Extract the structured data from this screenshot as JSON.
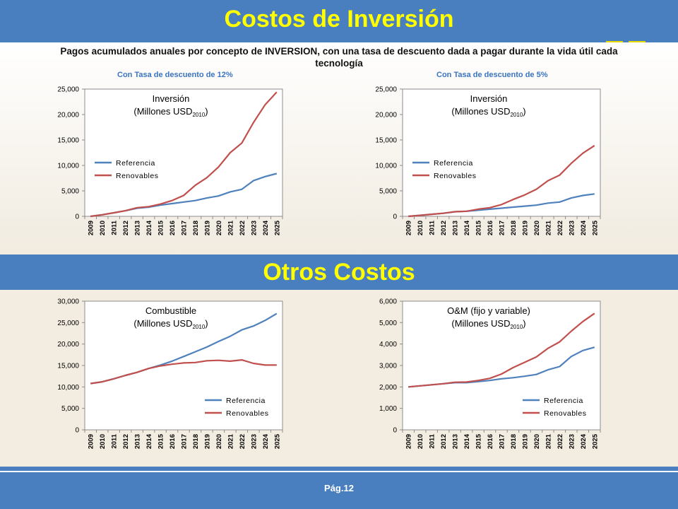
{
  "header": {
    "title": "Costos de Inversión"
  },
  "subtitle": "Pagos acumulados anuales por concepto de INVERSION, con una tasa de descuento dada a pagar durante la vida útil cada tecnología",
  "panel_labels": {
    "left": "Con Tasa de descuento de 12%",
    "right": "Con Tasa de descuento de 5%"
  },
  "section2": {
    "title": "Otros Costos"
  },
  "footer": {
    "page": "Pág.12"
  },
  "colors": {
    "banner": "#4a7fbf",
    "title": "#ffff00",
    "referencia": "#4f81bd",
    "renovables": "#c0504d"
  },
  "chart_data": [
    {
      "type": "line",
      "title_line1": "Inversión",
      "title_line2": "(Millones USD",
      "title_sub": "2010",
      "title_close": ")",
      "x": [
        "2009",
        "2010",
        "2011",
        "2012",
        "2013",
        "2014",
        "2015",
        "2016",
        "2017",
        "2018",
        "2019",
        "2020",
        "2021",
        "2022",
        "2023",
        "2024",
        "2025"
      ],
      "ylim": [
        0,
        25000
      ],
      "yticks": [
        0,
        5000,
        10000,
        15000,
        20000,
        25000
      ],
      "ytick_labels": [
        "0",
        "5,000",
        "10,000",
        "15,000",
        "20,000",
        "25,000"
      ],
      "legend": "left-middle",
      "series": [
        {
          "name": "Referencia",
          "values": [
            0,
            300,
            700,
            1100,
            1600,
            1800,
            2200,
            2500,
            2800,
            3100,
            3600,
            4000,
            4800,
            5300,
            7000,
            7800,
            8400
          ]
        },
        {
          "name": "Renovables",
          "values": [
            0,
            300,
            700,
            1100,
            1700,
            1900,
            2400,
            3100,
            4100,
            6100,
            7600,
            9700,
            12500,
            14400,
            18400,
            21900,
            24400
          ]
        }
      ]
    },
    {
      "type": "line",
      "title_line1": "Inversión",
      "title_line2": "(Millones USD",
      "title_sub": "2010",
      "title_close": ")",
      "x": [
        "2009",
        "2010",
        "2011",
        "2012",
        "2013",
        "2014",
        "2015",
        "2016",
        "2017",
        "2018",
        "2019",
        "2020",
        "2021",
        "2022",
        "2023",
        "2024",
        "2025"
      ],
      "ylim": [
        0,
        25000
      ],
      "yticks": [
        0,
        5000,
        10000,
        15000,
        20000,
        25000
      ],
      "ytick_labels": [
        "0",
        "5,000",
        "10,000",
        "15,000",
        "20,000",
        "25,000"
      ],
      "legend": "left-middle",
      "series": [
        {
          "name": "Referencia",
          "values": [
            0,
            200,
            400,
            600,
            900,
            1000,
            1200,
            1400,
            1600,
            1800,
            2000,
            2200,
            2600,
            2800,
            3600,
            4100,
            4400
          ]
        },
        {
          "name": "Renovables",
          "values": [
            0,
            200,
            400,
            600,
            900,
            1000,
            1400,
            1700,
            2300,
            3300,
            4200,
            5300,
            7000,
            8100,
            10400,
            12400,
            13900
          ]
        }
      ]
    },
    {
      "type": "line",
      "title_line1": "Combustible",
      "title_line2": "(Millones USD",
      "title_sub": "2010",
      "title_close": ")",
      "x": [
        "2009",
        "2010",
        "2011",
        "2012",
        "2013",
        "2014",
        "2015",
        "2016",
        "2017",
        "2018",
        "2019",
        "2020",
        "2021",
        "2022",
        "2023",
        "2024",
        "2025"
      ],
      "ylim": [
        0,
        30000
      ],
      "yticks": [
        0,
        5000,
        10000,
        15000,
        20000,
        25000,
        30000
      ],
      "ytick_labels": [
        "0",
        "5,000",
        "10,000",
        "15,000",
        "20,000",
        "25,000",
        "30,000"
      ],
      "legend": "right-bottom",
      "series": [
        {
          "name": "Referencia",
          "values": [
            10800,
            11200,
            11900,
            12700,
            13400,
            14300,
            15100,
            16000,
            17100,
            18200,
            19300,
            20600,
            21800,
            23300,
            24200,
            25500,
            27100
          ]
        },
        {
          "name": "Renovables",
          "values": [
            10800,
            11200,
            11900,
            12700,
            13400,
            14300,
            14900,
            15300,
            15600,
            15700,
            16100,
            16200,
            16000,
            16300,
            15500,
            15100,
            15100
          ]
        }
      ]
    },
    {
      "type": "line",
      "title_line1": "O&M (fijo y variable)",
      "title_line2": "(Millones USD",
      "title_sub": "2010",
      "title_close": ")",
      "x": [
        "2009",
        "2010",
        "2011",
        "2012",
        "2013",
        "2014",
        "2015",
        "2016",
        "2017",
        "2018",
        "2019",
        "2020",
        "2021",
        "2022",
        "2023",
        "2024",
        "2025"
      ],
      "ylim": [
        0,
        6000
      ],
      "yticks": [
        0,
        1000,
        2000,
        3000,
        4000,
        5000,
        6000
      ],
      "ytick_labels": [
        "0",
        "1,000",
        "2,000",
        "3,000",
        "4,000",
        "5,000",
        "6,000"
      ],
      "legend": "right-bottom",
      "series": [
        {
          "name": "Referencia",
          "values": [
            2000,
            2050,
            2100,
            2150,
            2200,
            2200,
            2250,
            2300,
            2380,
            2430,
            2500,
            2580,
            2800,
            2950,
            3420,
            3700,
            3850
          ]
        },
        {
          "name": "Renovables",
          "values": [
            2000,
            2050,
            2100,
            2150,
            2220,
            2230,
            2300,
            2400,
            2600,
            2900,
            3150,
            3400,
            3800,
            4100,
            4600,
            5050,
            5430
          ]
        }
      ]
    }
  ]
}
